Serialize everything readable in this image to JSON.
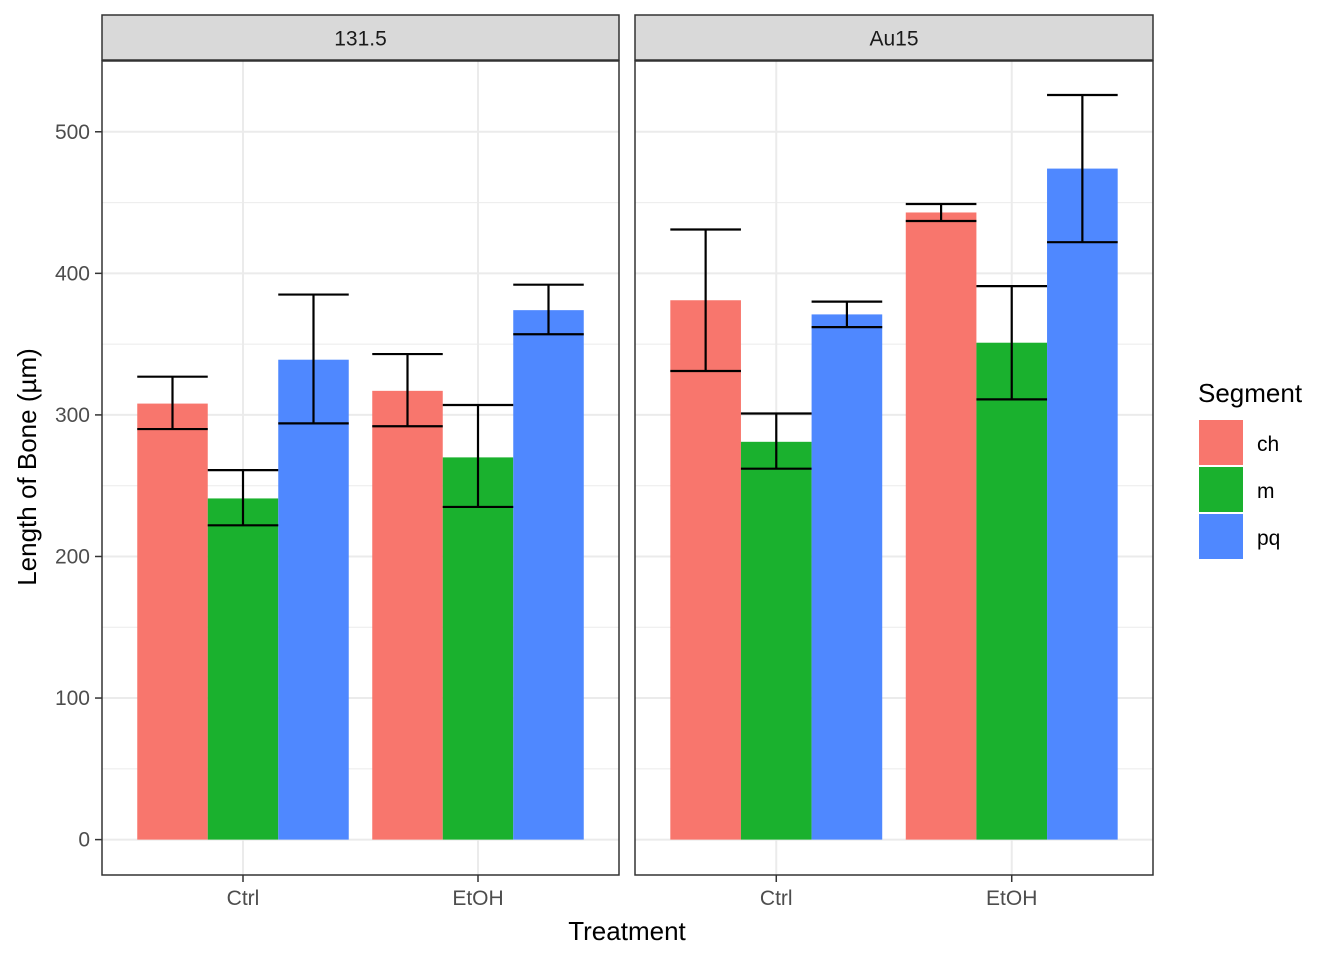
{
  "chart_data": {
    "type": "bar",
    "facets": [
      {
        "label": "131.5",
        "categories": [
          "Ctrl",
          "EtOH"
        ],
        "series": [
          {
            "name": "ch",
            "values": [
              308,
              317
            ],
            "error_low": [
              290,
              292
            ],
            "error_high": [
              327,
              343
            ]
          },
          {
            "name": "m",
            "values": [
              241,
              270
            ],
            "error_low": [
              222,
              235
            ],
            "error_high": [
              261,
              307
            ]
          },
          {
            "name": "pq",
            "values": [
              339,
              374
            ],
            "error_low": [
              294,
              357
            ],
            "error_high": [
              385,
              392
            ]
          }
        ]
      },
      {
        "label": "Au15",
        "categories": [
          "Ctrl",
          "EtOH"
        ],
        "series": [
          {
            "name": "ch",
            "values": [
              381,
              443
            ],
            "error_low": [
              331,
              437
            ],
            "error_high": [
              431,
              449
            ]
          },
          {
            "name": "m",
            "values": [
              281,
              351
            ],
            "error_low": [
              262,
              311
            ],
            "error_high": [
              301,
              391
            ]
          },
          {
            "name": "pq",
            "values": [
              371,
              474
            ],
            "error_low": [
              362,
              422
            ],
            "error_high": [
              380,
              526
            ]
          }
        ]
      }
    ],
    "xlabel": "Treatment",
    "ylabel": "Length of Bone (µm)",
    "ylim": [
      -25,
      550
    ],
    "yticks": [
      "0",
      "100",
      "200",
      "300",
      "400",
      "500"
    ],
    "grid": true,
    "legend": {
      "title": "Segment",
      "position": "right",
      "entries": [
        {
          "name": "ch",
          "color": "#F8766D"
        },
        {
          "name": "m",
          "color": "#00BA38"
        },
        {
          "name": "pq",
          "color": "#619CFF"
        }
      ]
    },
    "colors": {
      "ch": "#F8766D",
      "m": "#1AB12E",
      "pq": "#4F88FF"
    }
  }
}
